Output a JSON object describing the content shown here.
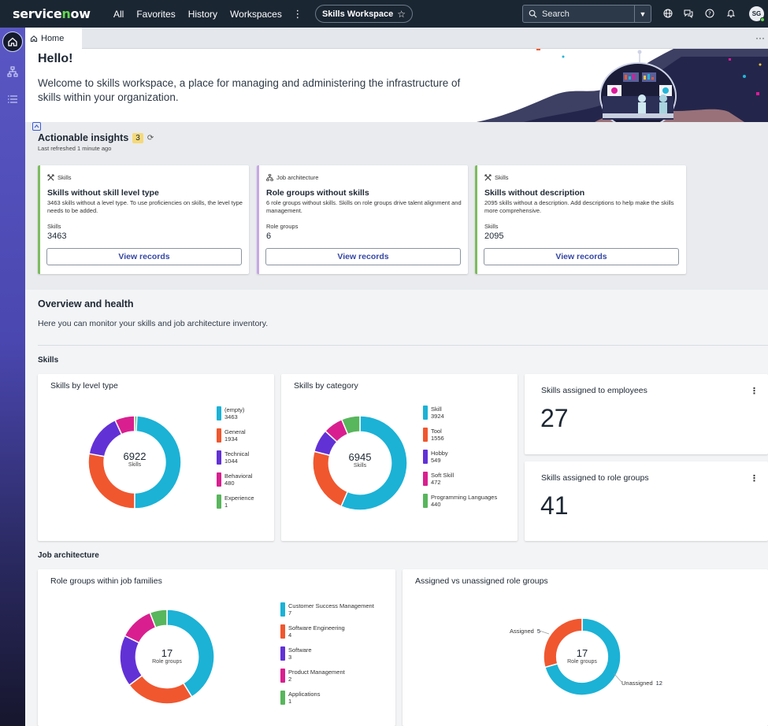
{
  "topnav": {
    "logo": "servicenow",
    "links": [
      "All",
      "Favorites",
      "History",
      "Workspaces"
    ],
    "more": "⋮",
    "workspace_pill": "Skills Workspace",
    "search_label": "Search",
    "avatar_initials": "SG"
  },
  "tabs": [
    {
      "label": "Home"
    }
  ],
  "tab_more": "···",
  "banner": {
    "title": "Hello!",
    "welcome": "Welcome to skills workspace, a place for managing and administering the infrastructure of skills within your organization."
  },
  "insights": {
    "title": "Actionable insights",
    "count": "3",
    "refreshed": "Last refreshed 1 minute ago",
    "cards": [
      {
        "category": "Skills",
        "title": "Skills without skill level type",
        "description": "3463 skills without a level type. To use proficiencies on skills, the level type needs to be added.",
        "metric_label": "Skills",
        "metric_value": "3463",
        "button": "View records"
      },
      {
        "category": "Job architecture",
        "title": "Role groups without skills",
        "description": "6 role groups without skills. Skills on role groups drive talent alignment and management.",
        "metric_label": "Role groups",
        "metric_value": "6",
        "button": "View records"
      },
      {
        "category": "Skills",
        "title": "Skills without description",
        "description": "2095 skills without a description. Add descriptions to help make the skills more comprehensive.",
        "metric_label": "Skills",
        "metric_value": "2095",
        "button": "View records"
      }
    ]
  },
  "overview": {
    "title": "Overview and health",
    "subtitle": "Here you can monitor your skills and job architecture inventory.",
    "skills_section": "Skills",
    "job_section": "Job architecture",
    "kpis": [
      {
        "title": "Skills assigned to employees",
        "value": "27"
      },
      {
        "title": "Skills assigned to role groups",
        "value": "41"
      }
    ]
  },
  "colors": {
    "cyan": "#1bb2d6",
    "orange": "#f0572f",
    "purple": "#6231d6",
    "magenta": "#d91f8f",
    "green": "#58b65c",
    "pink": "#e0199a",
    "accent": "#3547a3"
  },
  "chart_data": [
    {
      "type": "pie",
      "title": "Skills by level type",
      "center_value": "6922",
      "center_label": "Skills",
      "categories": [
        "(empty)",
        "General",
        "Technical",
        "Behavioral",
        "Experience"
      ],
      "values": [
        3463,
        1934,
        1044,
        480,
        1
      ],
      "colors": [
        "#1bb2d6",
        "#f0572f",
        "#6231d6",
        "#d91f8f",
        "#58b65c"
      ]
    },
    {
      "type": "pie",
      "title": "Skills by category",
      "center_value": "6945",
      "center_label": "Skills",
      "categories": [
        "Skill",
        "Tool",
        "Hobby",
        "Soft Skill",
        "Programming Languages"
      ],
      "values": [
        3924,
        1556,
        549,
        472,
        440
      ],
      "colors": [
        "#1bb2d6",
        "#f0572f",
        "#6231d6",
        "#d91f8f",
        "#58b65c"
      ]
    },
    {
      "type": "pie",
      "title": "Role groups within job families",
      "center_value": "17",
      "center_label": "Role groups",
      "categories": [
        "Customer Success Management",
        "Software Engineering",
        "Software",
        "Product Management",
        "Applications"
      ],
      "values": [
        7,
        4,
        3,
        2,
        1
      ],
      "colors": [
        "#1bb2d6",
        "#f0572f",
        "#6231d6",
        "#d91f8f",
        "#58b65c"
      ]
    },
    {
      "type": "pie",
      "title": "Assigned vs unassigned role groups",
      "center_value": "17",
      "center_label": "Role groups",
      "categories": [
        "Unassigned",
        "Assigned"
      ],
      "values": [
        12,
        5
      ],
      "colors": [
        "#1bb2d6",
        "#f0572f"
      ]
    }
  ]
}
